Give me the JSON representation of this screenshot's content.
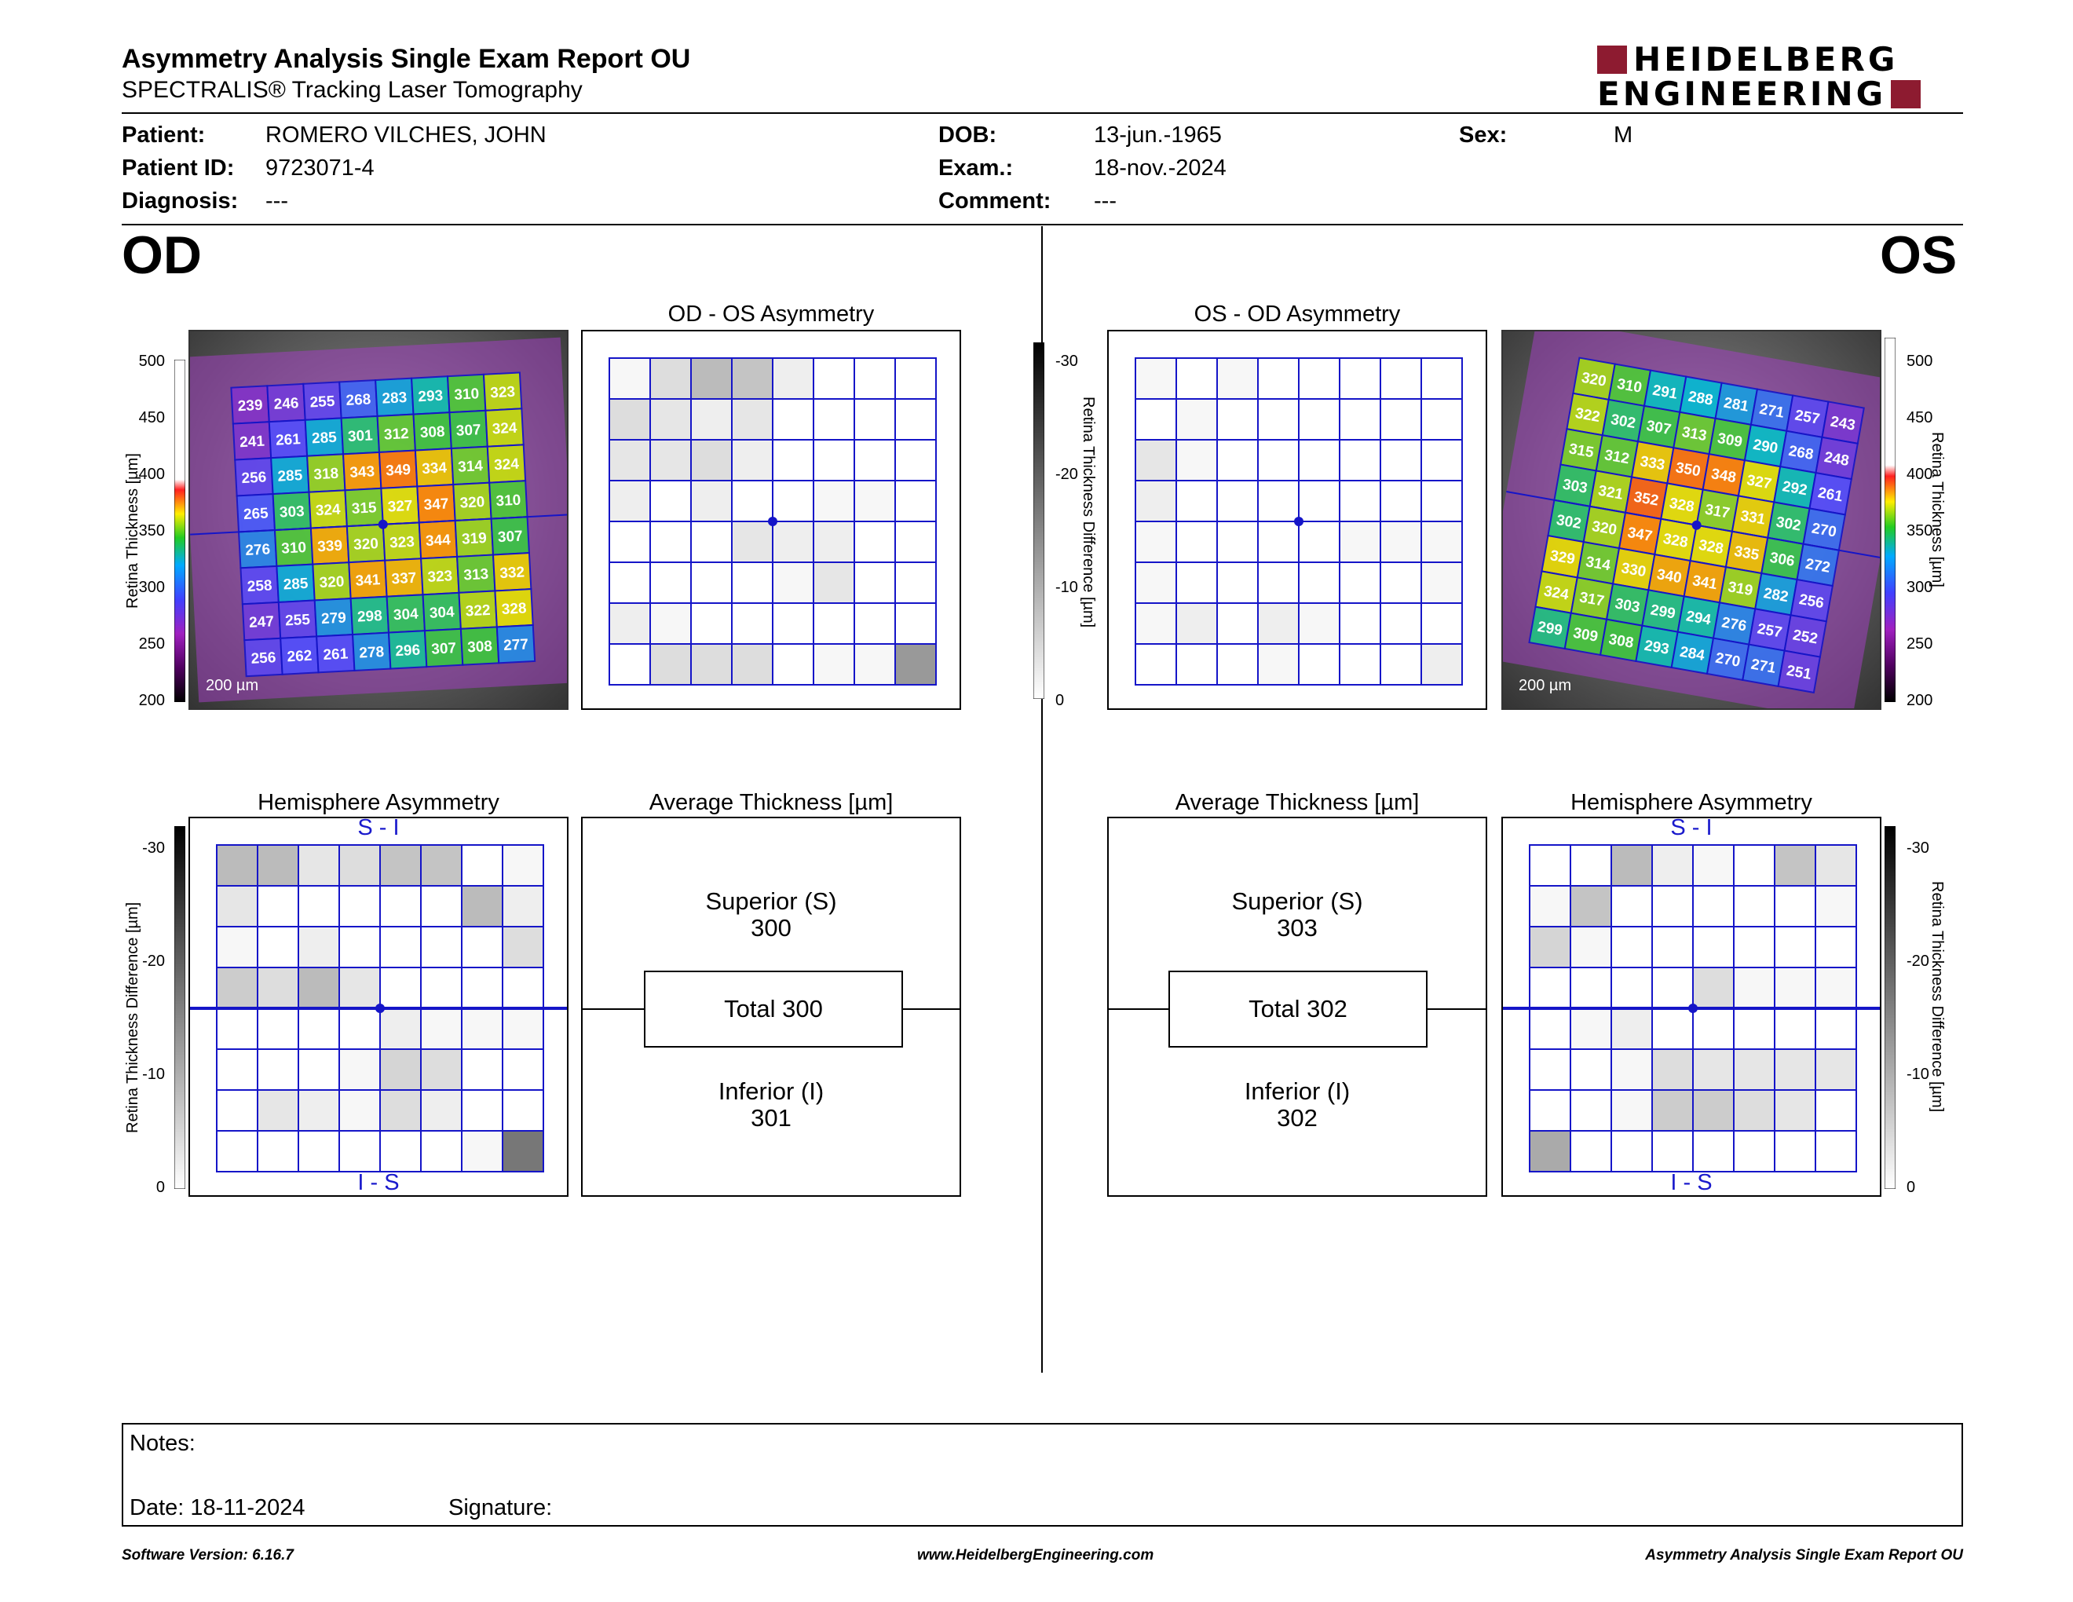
{
  "header": {
    "title": "Asymmetry Analysis Single Exam Report OU",
    "subtitle": "SPECTRALIS® Tracking Laser Tomography",
    "logo_line1": "HEIDELBERG",
    "logo_line2": "ENGINEERING"
  },
  "patient": {
    "patient_label": "Patient:",
    "patient": "ROMERO VILCHES, JOHN",
    "id_label": "Patient ID:",
    "id": "9723071-4",
    "diagnosis_label": "Diagnosis:",
    "diagnosis": "---",
    "dob_label": "DOB:",
    "dob": "13-jun.-1965",
    "exam_label": "Exam.:",
    "exam": "18-nov.-2024",
    "comment_label": "Comment:",
    "comment": "---",
    "sex_label": "Sex:",
    "sex": "M"
  },
  "od": {
    "eye_label": "OD",
    "asym_title": "OD - OS Asymmetry",
    "hemi_title": "Hemisphere Asymmetry",
    "avg_title": "Average Thickness [µm]",
    "superior_label": "Superior (S)",
    "superior": "300",
    "total": "Total 300",
    "inferior_label": "Inferior (I)",
    "inferior": "301",
    "scale_label": "200 µm",
    "thickness_grid": [
      [
        239,
        246,
        255,
        268,
        283,
        293,
        310,
        323
      ],
      [
        241,
        261,
        285,
        301,
        312,
        308,
        307,
        324
      ],
      [
        256,
        285,
        318,
        343,
        349,
        334,
        314,
        324
      ],
      [
        265,
        303,
        324,
        315,
        327,
        347,
        320,
        310
      ],
      [
        276,
        310,
        339,
        320,
        323,
        344,
        319,
        307
      ],
      [
        258,
        285,
        320,
        341,
        337,
        323,
        313,
        332
      ],
      [
        247,
        255,
        279,
        298,
        304,
        304,
        322,
        328
      ],
      [
        256,
        262,
        261,
        278,
        296,
        307,
        308,
        277
      ]
    ],
    "asym_grid": [
      [
        1,
        4,
        8,
        7,
        2,
        0,
        0,
        0
      ],
      [
        4,
        3,
        2,
        3,
        0,
        0,
        0,
        0
      ],
      [
        3,
        3,
        4,
        2,
        0,
        0,
        0,
        0
      ],
      [
        2,
        0,
        2,
        0,
        0,
        1,
        1,
        0
      ],
      [
        0,
        0,
        0,
        3,
        2,
        2,
        0,
        0
      ],
      [
        0,
        0,
        0,
        0,
        1,
        3,
        0,
        0
      ],
      [
        2,
        1,
        0,
        0,
        0,
        0,
        0,
        0
      ],
      [
        0,
        4,
        4,
        4,
        0,
        1,
        1,
        12
      ]
    ],
    "hemi_grid": [
      [
        8,
        8,
        3,
        4,
        7,
        7,
        0,
        1
      ],
      [
        3,
        0,
        0,
        0,
        0,
        0,
        8,
        2
      ],
      [
        1,
        0,
        2,
        0,
        0,
        0,
        0,
        4
      ],
      [
        6,
        4,
        8,
        3,
        0,
        0,
        0,
        0
      ],
      [
        0,
        0,
        0,
        0,
        2,
        1,
        1,
        1
      ],
      [
        0,
        0,
        0,
        1,
        5,
        4,
        0,
        0
      ],
      [
        0,
        3,
        2,
        1,
        4,
        2,
        0,
        0
      ],
      [
        0,
        0,
        0,
        0,
        0,
        0,
        1,
        16
      ]
    ]
  },
  "os": {
    "eye_label": "OS",
    "asym_title": "OS - OD Asymmetry",
    "hemi_title": "Hemisphere Asymmetry",
    "avg_title": "Average Thickness [µm]",
    "superior_label": "Superior (S)",
    "superior": "303",
    "total": "Total 302",
    "inferior_label": "Inferior (I)",
    "inferior": "302",
    "scale_label": "200 µm",
    "thickness_grid": [
      [
        320,
        310,
        291,
        288,
        281,
        271,
        257,
        243
      ],
      [
        322,
        302,
        307,
        313,
        309,
        290,
        268,
        248
      ],
      [
        315,
        312,
        333,
        350,
        348,
        327,
        292,
        261
      ],
      [
        303,
        321,
        352,
        328,
        317,
        331,
        302,
        270
      ],
      [
        302,
        320,
        347,
        328,
        328,
        335,
        306,
        272
      ],
      [
        329,
        314,
        330,
        340,
        341,
        319,
        282,
        256
      ],
      [
        324,
        317,
        303,
        299,
        294,
        276,
        257,
        252
      ],
      [
        299,
        309,
        308,
        293,
        284,
        270,
        271,
        251
      ]
    ],
    "asym_grid": [
      [
        1,
        0,
        1,
        0,
        0,
        0,
        0,
        0
      ],
      [
        0,
        1,
        0,
        0,
        0,
        0,
        0,
        0
      ],
      [
        3,
        1,
        0,
        0,
        0,
        0,
        0,
        0
      ],
      [
        2,
        0,
        0,
        0,
        0,
        0,
        0,
        0
      ],
      [
        1,
        0,
        0,
        0,
        0,
        1,
        1,
        1
      ],
      [
        1,
        0,
        0,
        0,
        0,
        0,
        0,
        1
      ],
      [
        1,
        2,
        0,
        2,
        1,
        0,
        0,
        0
      ],
      [
        0,
        0,
        0,
        1,
        0,
        0,
        0,
        2
      ]
    ],
    "hemi_grid": [
      [
        0,
        0,
        8,
        2,
        1,
        0,
        7,
        3
      ],
      [
        1,
        7,
        0,
        0,
        0,
        0,
        0,
        1
      ],
      [
        5,
        1,
        0,
        0,
        0,
        0,
        0,
        0
      ],
      [
        0,
        0,
        0,
        0,
        4,
        1,
        1,
        1
      ],
      [
        0,
        1,
        2,
        0,
        0,
        0,
        0,
        0
      ],
      [
        0,
        0,
        1,
        4,
        3,
        3,
        3,
        3
      ],
      [
        0,
        0,
        1,
        6,
        6,
        4,
        3,
        0
      ],
      [
        10,
        0,
        0,
        0,
        0,
        0,
        0,
        0
      ]
    ]
  },
  "scales": {
    "thickness_ticks": [
      "500",
      "450",
      "400",
      "350",
      "300",
      "250",
      "200"
    ],
    "thickness_label": "Retina Thickness [µm]",
    "diff_ticks": [
      "-30",
      "-20",
      "-10",
      "0"
    ],
    "diff_label": "Retina Thickness Difference [µm]",
    "hemi_top": "S - I",
    "hemi_bottom": "I - S"
  },
  "notes": {
    "notes_label": "Notes:",
    "date_label": "Date: 18-11-2024",
    "signature_label": "Signature:"
  },
  "footer": {
    "version": "Software Version: 6.16.7",
    "url": "www.HeidelbergEngineering.com",
    "report": "Asymmetry Analysis Single Exam Report OU"
  }
}
